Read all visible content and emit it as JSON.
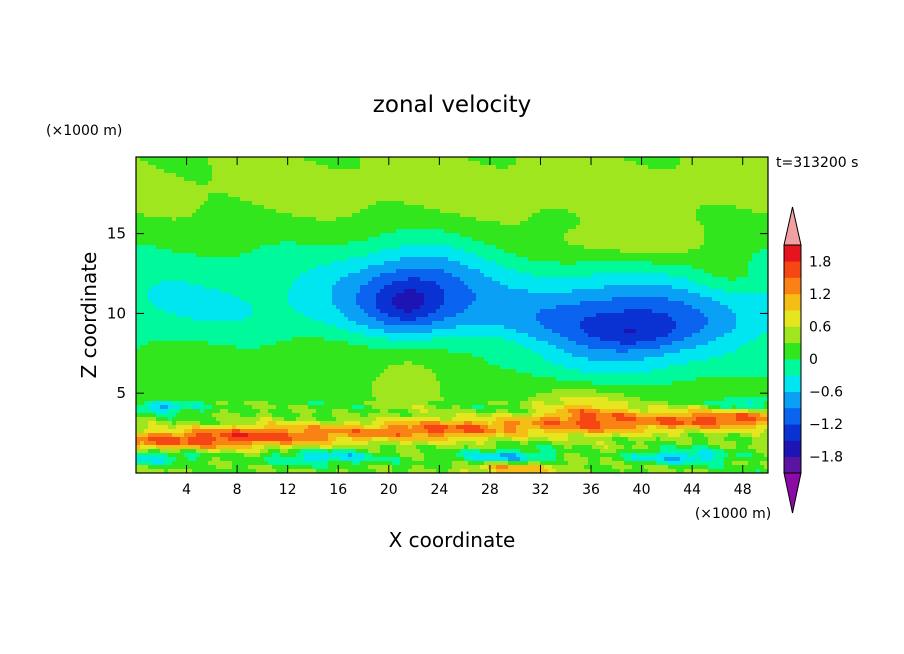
{
  "chart_data": {
    "type": "heatmap",
    "title": "zonal velocity",
    "time_label": "t=313200 s",
    "xlabel": "X coordinate",
    "ylabel": "Z coordinate",
    "x_unit": "(×1000 m)",
    "y_unit": "(×1000 m)",
    "xlim": [
      0,
      50
    ],
    "ylim": [
      0,
      19.8
    ],
    "x_ticks": [
      4,
      8,
      12,
      16,
      20,
      24,
      28,
      32,
      36,
      40,
      44,
      48
    ],
    "y_ticks": [
      5,
      10,
      15
    ],
    "colorbar": {
      "levels": [
        -2.1,
        -1.8,
        -1.5,
        -1.2,
        -0.9,
        -0.6,
        -0.3,
        0,
        0.3,
        0.6,
        0.9,
        1.2,
        1.5,
        1.8,
        2.1
      ],
      "tick_values": [
        -1.8,
        -1.2,
        -0.6,
        0,
        0.6,
        1.2,
        1.8
      ],
      "tick_labels": [
        "−1.8",
        "−1.2",
        "−0.6",
        "0",
        "0.6",
        "1.2",
        "1.8"
      ],
      "colors": [
        "#8c0aa5",
        "#5a14a0",
        "#1e14b4",
        "#0a32d2",
        "#0a64f0",
        "#0aa0f5",
        "#00e6f0",
        "#00fa9b",
        "#32e61e",
        "#a0e61e",
        "#e6e61e",
        "#f5be14",
        "#fa8214",
        "#f54614",
        "#e6141e",
        "#f0a0a0"
      ],
      "low_extend_color": "#8c0aa5",
      "high_extend_color": "#f0a0a0"
    },
    "features": [
      {
        "name": "upper jet core",
        "x": 22,
        "z": 11.5,
        "value": -1.4
      },
      {
        "name": "lower-right jet core",
        "x": 38.5,
        "z": 8.8,
        "value": -1.6
      },
      {
        "name": "low-level westerly band",
        "x": 12,
        "z": 2.2,
        "value": 1.7
      },
      {
        "name": "lee maximum",
        "x": 36,
        "z": 4.0,
        "value": 1.2
      },
      {
        "name": "upper-right weak maximum",
        "x": 38,
        "z": 14.5,
        "value": 0.5
      },
      {
        "name": "mid-level positive lobe",
        "x": 22,
        "z": 6.2,
        "value": 0.3
      }
    ]
  }
}
